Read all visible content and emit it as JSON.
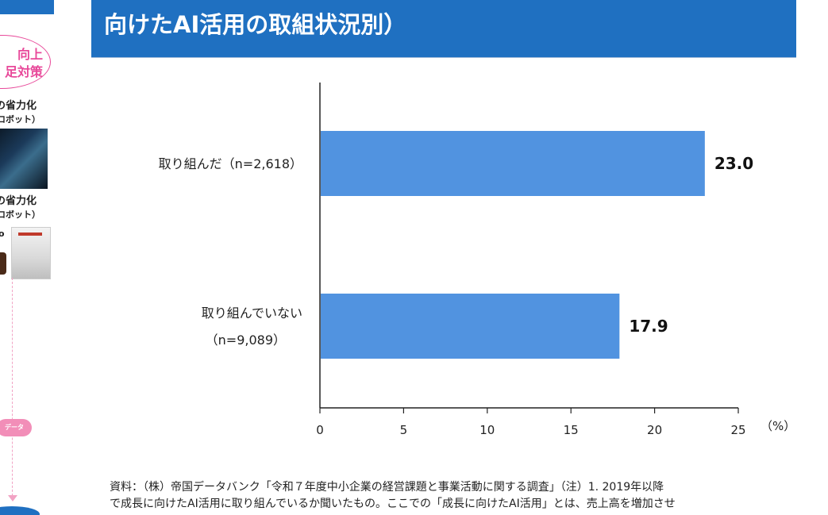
{
  "left_panel": {
    "oval_text_1": "向上",
    "oval_text_2": "足対策",
    "caption_a": "の省力化",
    "caption_a_sub": "ロボット）",
    "caption_b": "の省力化",
    "caption_b_sub": "ロボット）",
    "caption_c": "o",
    "cloud_text": "データ",
    "colors": {
      "accent_pink": "#e8499a",
      "banner_blue": "#1f70c1"
    }
  },
  "header": {
    "title_line_2": "向けたAI活用の取組状況別）"
  },
  "chart_data": {
    "type": "bar",
    "orientation": "horizontal",
    "categories": [
      [
        "取り組んだ（n=2,618）"
      ],
      [
        "取り組んでいない",
        "（n=9,089）"
      ]
    ],
    "values": [
      23.0,
      17.9
    ],
    "value_labels": [
      "23.0",
      "17.9"
    ],
    "xlim": [
      0,
      25
    ],
    "xticks": [
      "0",
      "5",
      "10",
      "15",
      "20",
      "25"
    ],
    "unit_label": "（%）",
    "bar_color": "#5193e0",
    "grid": false
  },
  "source": {
    "line_1": "資料：（株）帝国データバンク「令和７年度中小企業の経営課題と事業活動に関する調査」（注）1. 2019年以降",
    "line_2": "で成長に向けたAI活用に取り組んでいるか聞いたもの。ここでの「成長に向けたAI活用」とは、売上高を増加させ"
  }
}
